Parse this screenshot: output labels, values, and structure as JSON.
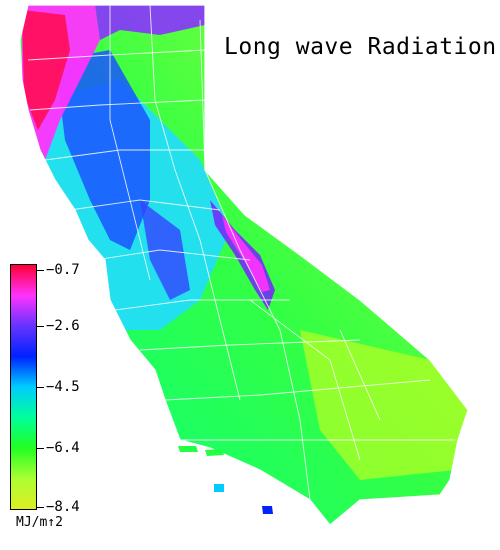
{
  "title": "Long wave Radiation",
  "units": "MJ/m↑2",
  "legend": {
    "ticks": [
      "−0.7",
      "−2.6",
      "−4.5",
      "−6.4",
      "−8.4"
    ],
    "colors": [
      "#ff0033",
      "#ff33ff",
      "#6633ff",
      "#0022ff",
      "#00ccff",
      "#00ff99",
      "#22ff22",
      "#aaff33",
      "#ddee22"
    ]
  }
}
